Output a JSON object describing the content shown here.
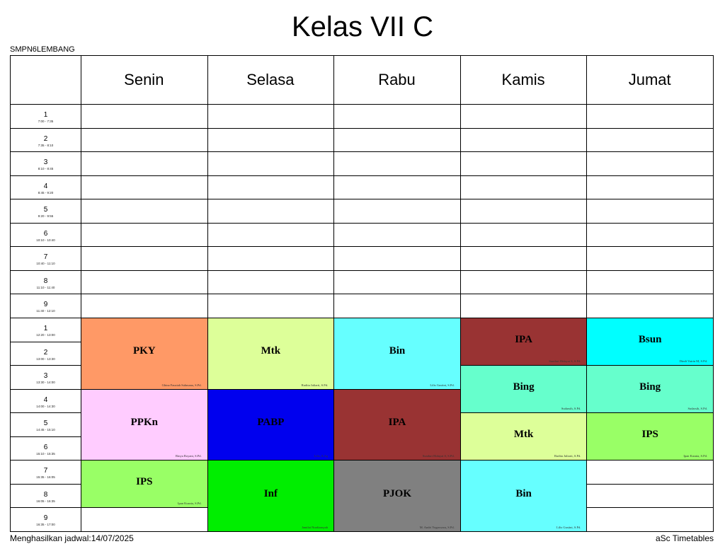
{
  "header": {
    "title": "Kelas VII C",
    "school": "SMPN6LEMBANG"
  },
  "footer": {
    "generated": "Menghasilkan jadwal:14/07/2025",
    "brand": "aSc Timetables"
  },
  "days": [
    "Senin",
    "Selasa",
    "Rabu",
    "Kamis",
    "Jumat"
  ],
  "periods": [
    {
      "num": "1",
      "time": "7:00 - 7:35"
    },
    {
      "num": "2",
      "time": "7:35 - 8:10"
    },
    {
      "num": "3",
      "time": "8:10 - 8:45"
    },
    {
      "num": "4",
      "time": "8:45 - 9:20"
    },
    {
      "num": "5",
      "time": "9:20 - 9:55"
    },
    {
      "num": "6",
      "time": "10:10 - 10:40"
    },
    {
      "num": "7",
      "time": "10:40 - 11:10"
    },
    {
      "num": "8",
      "time": "11:10 - 11:40"
    },
    {
      "num": "9",
      "time": "11:40 - 12:10"
    },
    {
      "num": "1",
      "time": "12:20 - 13:00"
    },
    {
      "num": "2",
      "time": "13:00 - 13:30"
    },
    {
      "num": "3",
      "time": "13:30 - 14:00"
    },
    {
      "num": "4",
      "time": "14:00 - 14:30"
    },
    {
      "num": "5",
      "time": "14:45 - 15:10"
    },
    {
      "num": "6",
      "time": "15:10 - 15:35"
    },
    {
      "num": "7",
      "time": "15:35 - 16:05"
    },
    {
      "num": "8",
      "time": "16:05 - 16:35"
    },
    {
      "num": "9",
      "time": "16:35 - 17:00"
    }
  ],
  "lessons": [
    {
      "day": 0,
      "start": 9,
      "span": 3,
      "subject": "PKY",
      "teacher": "Ghina Fauziah Suhmana, S.Pd.",
      "color": "#FF9966"
    },
    {
      "day": 0,
      "start": 12,
      "span": 3,
      "subject": "PPKn",
      "teacher": "Rinya Royani, S.Pd.",
      "color": "#FFCCFF"
    },
    {
      "day": 0,
      "start": 15,
      "span": 2,
      "subject": "IPS",
      "teacher": "Ipan Kusnia, S.Pd.",
      "color": "#99FF66"
    },
    {
      "day": 1,
      "start": 9,
      "span": 3,
      "subject": "Mtk",
      "teacher": "Rudita Juliarti, S.Pd.",
      "color": "#DDFF99"
    },
    {
      "day": 1,
      "start": 12,
      "span": 3,
      "subject": "PABP",
      "teacher": "Lilis, S.Ag",
      "color": "#0000EE"
    },
    {
      "day": 1,
      "start": 15,
      "span": 3,
      "subject": "Inf",
      "teacher": "Jamilat Nurdiansyah",
      "color": "#00EE00"
    },
    {
      "day": 2,
      "start": 9,
      "span": 3,
      "subject": "Bin",
      "teacher": "Lilis Gustini, S.Pd.",
      "color": "#66FFFF"
    },
    {
      "day": 2,
      "start": 12,
      "span": 3,
      "subject": "IPA",
      "teacher": "Sunduri Hidayat S, S.Pd.",
      "color": "#993333"
    },
    {
      "day": 2,
      "start": 15,
      "span": 3,
      "subject": "PJOK",
      "teacher": "M. Andri Yogaswara, S.Pd.",
      "color": "#808080"
    },
    {
      "day": 3,
      "start": 9,
      "span": 2,
      "subject": "IPA",
      "teacher": "Sunduri Hidayat S, S.Pd.",
      "color": "#993333"
    },
    {
      "day": 3,
      "start": 11,
      "span": 2,
      "subject": "Bing",
      "teacher": "Sudarsih, S.Pd.",
      "color": "#66FFCC"
    },
    {
      "day": 3,
      "start": 13,
      "span": 2,
      "subject": "Mtk",
      "teacher": "Rudita Juliarti, S.Pd.",
      "color": "#DDFF99"
    },
    {
      "day": 3,
      "start": 15,
      "span": 3,
      "subject": "Bin",
      "teacher": "Lilis Gustini, S.Pd.",
      "color": "#66FFFF"
    },
    {
      "day": 4,
      "start": 9,
      "span": 2,
      "subject": "Bsun",
      "teacher": "Dindi Vairin M, S.Pd.",
      "color": "#00FFFF"
    },
    {
      "day": 4,
      "start": 11,
      "span": 2,
      "subject": "Bing",
      "teacher": "Sudarsih, S.Pd.",
      "color": "#66FFCC"
    },
    {
      "day": 4,
      "start": 13,
      "span": 2,
      "subject": "IPS",
      "teacher": "Ipan Kusnia, S.Pd.",
      "color": "#99FF66"
    }
  ]
}
